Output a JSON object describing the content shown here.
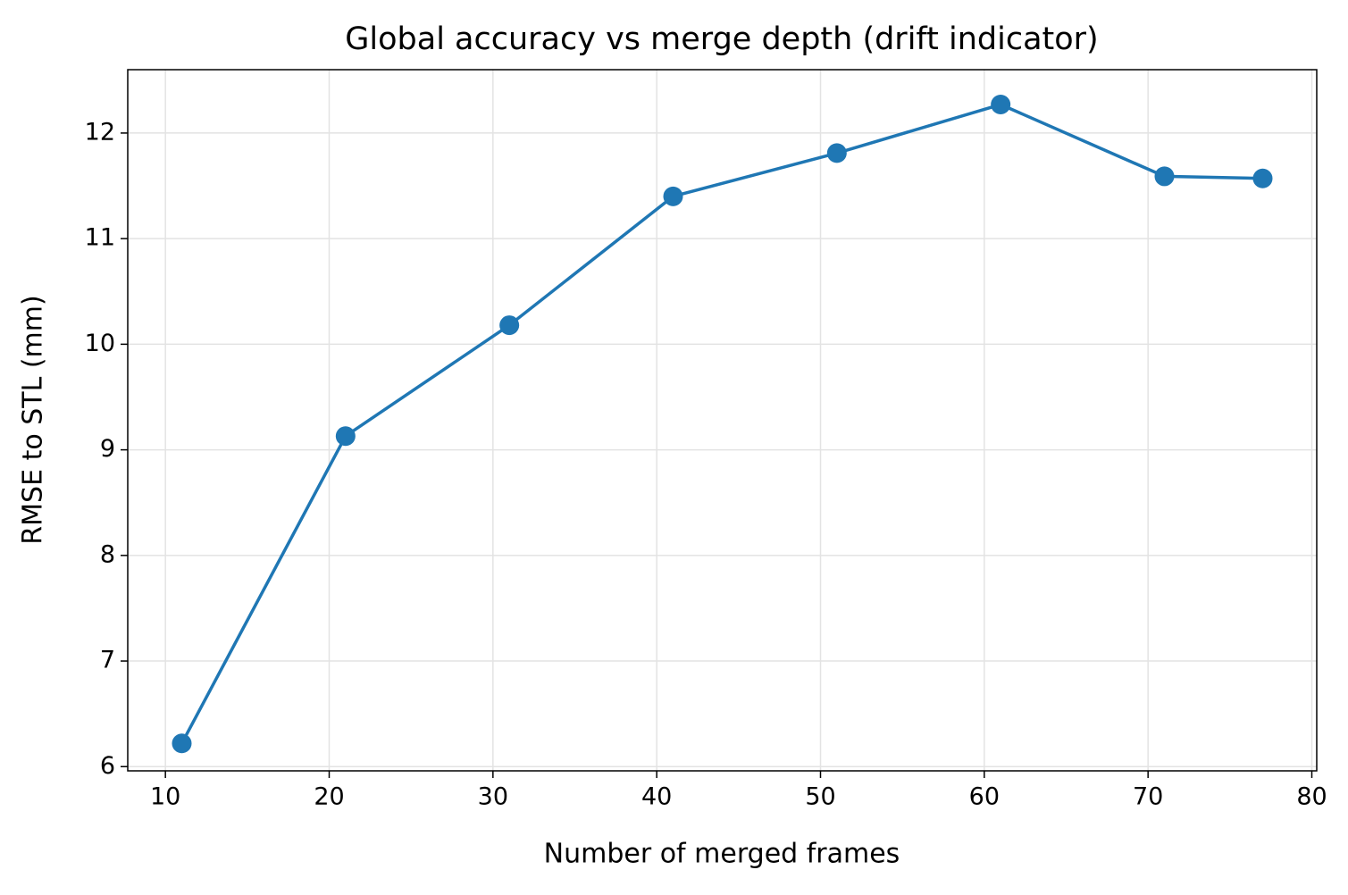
{
  "chart_data": {
    "type": "line",
    "title": "Global accuracy vs merge depth (drift indicator)",
    "x_label": "Number of merged frames",
    "y_label": "RMSE to STL (mm)",
    "x": [
      11,
      21,
      31,
      41,
      51,
      61,
      71,
      77
    ],
    "values": [
      6.22,
      9.13,
      10.18,
      11.4,
      11.81,
      12.27,
      11.59,
      11.57
    ],
    "color": "#1f77b4",
    "xlim": [
      7.7,
      80.3
    ],
    "xticks": [
      10,
      20,
      30,
      40,
      50,
      60,
      70,
      80
    ],
    "ylim": [
      5.96,
      12.6
    ],
    "yticks": [
      6,
      7,
      8,
      9,
      10,
      11,
      12
    ],
    "grid": true,
    "markers": true
  }
}
